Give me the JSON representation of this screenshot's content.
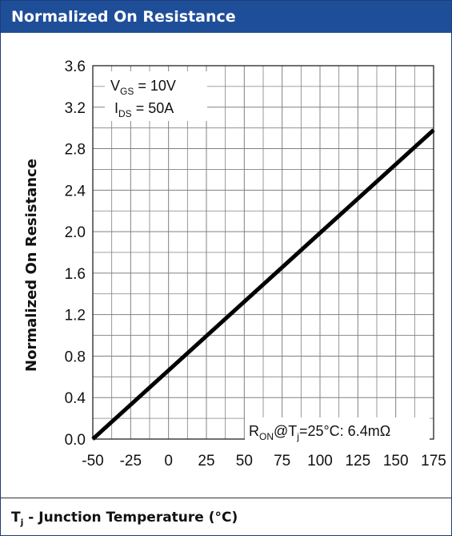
{
  "header": {
    "title": "Normalized On Resistance"
  },
  "footer": {
    "label_prefix": "T",
    "label_sub": "j",
    "label_rest": " - Junction Temperature (°C)"
  },
  "chart_data": {
    "type": "line",
    "title": "Normalized On Resistance",
    "xlabel": "Tj - Junction Temperature (°C)",
    "ylabel": "Normalized On Resistance",
    "xlim": [
      -50,
      175
    ],
    "ylim": [
      0,
      3.6
    ],
    "x_ticks": [
      "-50",
      "-25",
      "0",
      "25",
      "50",
      "75",
      "100",
      "125",
      "150",
      "175"
    ],
    "y_ticks": [
      "0.0",
      "0.4",
      "0.8",
      "1.2",
      "1.6",
      "2.0",
      "2.4",
      "2.8",
      "3.2",
      "3.6"
    ],
    "grid": true,
    "series": [
      {
        "x": [
          -50,
          175
        ],
        "y": [
          0.0,
          2.98
        ]
      }
    ],
    "annotations": {
      "vgs": {
        "main": "V",
        "sub": "GS",
        "rest": " = 10V"
      },
      "ids": {
        "main": "I",
        "sub": "DS",
        "rest": " = 50A"
      },
      "ron": {
        "main": "R",
        "sub": "ON",
        "mid": "@T",
        "sub2": "j",
        "rest": "=25°C: 6.4mΩ"
      }
    },
    "line_color": "#000000",
    "grid_color": "#808080"
  }
}
